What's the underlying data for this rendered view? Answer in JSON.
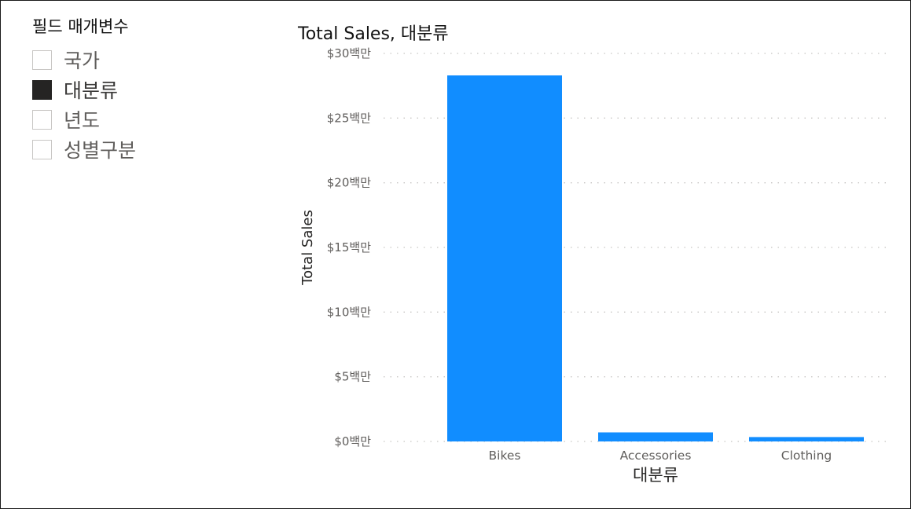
{
  "slicer": {
    "title": "필드 매개변수",
    "items": [
      {
        "label": "국가",
        "checked": false
      },
      {
        "label": "대분류",
        "checked": true
      },
      {
        "label": "년도",
        "checked": false
      },
      {
        "label": "성별구분",
        "checked": false
      }
    ]
  },
  "chart": {
    "title": "Total Sales, 대분류"
  },
  "chart_data": {
    "type": "bar",
    "title": "Total Sales, 대분류",
    "xlabel": "대분류",
    "ylabel": "Total Sales",
    "categories": [
      "Bikes",
      "Accessories",
      "Clothing"
    ],
    "values": [
      28.3,
      0.7,
      0.34
    ],
    "value_unit": "백만",
    "ylim": [
      0,
      30
    ],
    "yticks": [
      0,
      5,
      10,
      15,
      20,
      25,
      30
    ],
    "ytick_labels": [
      "$0백만",
      "$5백만",
      "$10백만",
      "$15백만",
      "$20백만",
      "$25백만",
      "$30백만"
    ],
    "grid": true,
    "bar_color": "#118DFF",
    "grid_color": "#c8c6c4"
  }
}
